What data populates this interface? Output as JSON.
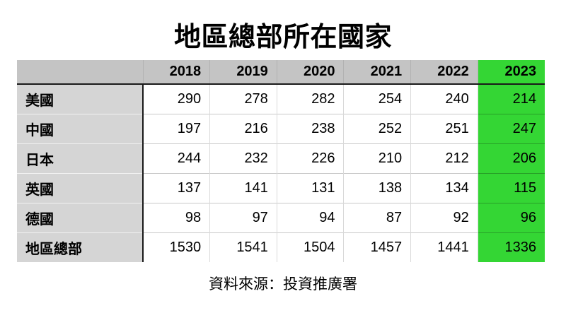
{
  "chart_data": {
    "type": "table",
    "title": "地區總部所在國家",
    "categories": [
      "2018",
      "2019",
      "2020",
      "2021",
      "2022",
      "2023"
    ],
    "series": [
      {
        "name": "美國",
        "values": [
          290,
          278,
          282,
          254,
          240,
          214
        ]
      },
      {
        "name": "中國",
        "values": [
          197,
          216,
          238,
          252,
          251,
          247
        ]
      },
      {
        "name": "日本",
        "values": [
          244,
          232,
          226,
          210,
          212,
          206
        ]
      },
      {
        "name": "英國",
        "values": [
          137,
          141,
          131,
          138,
          134,
          115
        ]
      },
      {
        "name": "德國",
        "values": [
          98,
          97,
          94,
          87,
          92,
          96
        ]
      },
      {
        "name": "地區總部",
        "values": [
          1530,
          1541,
          1504,
          1457,
          1441,
          1336
        ]
      }
    ],
    "highlight_column": "2023",
    "source": "資料來源：投資推廣署",
    "colors": {
      "highlight_green": "#34d634",
      "header_gray": "#c4c4c4",
      "label_gray": "#d5d5d5"
    },
    "layout_hints": {
      "highlighted_column_index": 5,
      "grid": true,
      "values_align": "right"
    }
  }
}
